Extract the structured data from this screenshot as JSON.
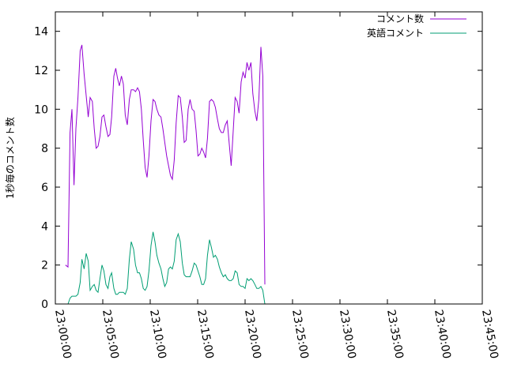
{
  "chart_data": {
    "type": "line",
    "xlabel": "",
    "ylabel": "1秒毎のコメント数",
    "ylim": [
      0,
      15
    ],
    "yticks": [
      0,
      2,
      4,
      6,
      8,
      10,
      12,
      14
    ],
    "xlim_seconds": [
      0,
      2700
    ],
    "xticks": [
      {
        "t": 0,
        "label": "23:00:00"
      },
      {
        "t": 300,
        "label": "23:05:00"
      },
      {
        "t": 600,
        "label": "23:10:00"
      },
      {
        "t": 900,
        "label": "23:15:00"
      },
      {
        "t": 1200,
        "label": "23:20:00"
      },
      {
        "t": 1500,
        "label": "23:25:00"
      },
      {
        "t": 1800,
        "label": "23:30:00"
      },
      {
        "t": 2100,
        "label": "23:35:00"
      },
      {
        "t": 2400,
        "label": "23:40:00"
      },
      {
        "t": 2700,
        "label": "23:45:00"
      }
    ],
    "legend_position": "top-right",
    "series": [
      {
        "name": "コメント数",
        "color": "#9400d3",
        "points": [
          [
            64,
            2.0
          ],
          [
            80,
            1.9
          ],
          [
            93,
            8.8
          ],
          [
            105,
            10.0
          ],
          [
            118,
            6.1
          ],
          [
            130,
            9.0
          ],
          [
            143,
            10.6
          ],
          [
            157,
            13.0
          ],
          [
            168,
            13.3
          ],
          [
            182,
            11.8
          ],
          [
            195,
            10.7
          ],
          [
            208,
            9.6
          ],
          [
            220,
            10.6
          ],
          [
            234,
            10.4
          ],
          [
            246,
            9.0
          ],
          [
            258,
            8.0
          ],
          [
            270,
            8.1
          ],
          [
            282,
            8.6
          ],
          [
            295,
            9.6
          ],
          [
            307,
            9.7
          ],
          [
            320,
            9.1
          ],
          [
            333,
            8.6
          ],
          [
            345,
            8.7
          ],
          [
            356,
            9.6
          ],
          [
            370,
            11.7
          ],
          [
            382,
            12.1
          ],
          [
            393,
            11.6
          ],
          [
            405,
            11.2
          ],
          [
            418,
            11.7
          ],
          [
            430,
            11.3
          ],
          [
            442,
            9.7
          ],
          [
            455,
            9.2
          ],
          [
            468,
            10.5
          ],
          [
            480,
            11.0
          ],
          [
            495,
            11.0
          ],
          [
            507,
            10.9
          ],
          [
            520,
            11.1
          ],
          [
            532,
            10.9
          ],
          [
            544,
            10.0
          ],
          [
            556,
            8.4
          ],
          [
            568,
            7.0
          ],
          [
            580,
            6.5
          ],
          [
            592,
            7.6
          ],
          [
            605,
            9.4
          ],
          [
            618,
            10.5
          ],
          [
            630,
            10.4
          ],
          [
            642,
            10.0
          ],
          [
            655,
            9.7
          ],
          [
            668,
            9.6
          ],
          [
            680,
            9.0
          ],
          [
            692,
            8.3
          ],
          [
            704,
            7.6
          ],
          [
            716,
            7.1
          ],
          [
            728,
            6.6
          ],
          [
            740,
            6.4
          ],
          [
            752,
            7.4
          ],
          [
            764,
            9.3
          ],
          [
            777,
            10.7
          ],
          [
            790,
            10.6
          ],
          [
            803,
            9.6
          ],
          [
            815,
            8.3
          ],
          [
            827,
            8.4
          ],
          [
            840,
            10.0
          ],
          [
            852,
            10.5
          ],
          [
            865,
            10.0
          ],
          [
            878,
            9.9
          ],
          [
            890,
            8.9
          ],
          [
            902,
            7.6
          ],
          [
            914,
            7.7
          ],
          [
            926,
            8.0
          ],
          [
            938,
            7.8
          ],
          [
            950,
            7.5
          ],
          [
            962,
            8.5
          ],
          [
            975,
            10.4
          ],
          [
            987,
            10.5
          ],
          [
            1000,
            10.4
          ],
          [
            1012,
            10.1
          ],
          [
            1025,
            9.5
          ],
          [
            1037,
            9.0
          ],
          [
            1050,
            8.8
          ],
          [
            1062,
            8.8
          ],
          [
            1075,
            9.2
          ],
          [
            1087,
            9.4
          ],
          [
            1100,
            8.2
          ],
          [
            1112,
            7.1
          ],
          [
            1125,
            8.9
          ],
          [
            1137,
            10.6
          ],
          [
            1150,
            10.4
          ],
          [
            1162,
            9.8
          ],
          [
            1175,
            11.4
          ],
          [
            1187,
            11.9
          ],
          [
            1200,
            11.6
          ],
          [
            1212,
            12.4
          ],
          [
            1224,
            12.0
          ],
          [
            1237,
            12.4
          ],
          [
            1249,
            10.8
          ],
          [
            1262,
            9.9
          ],
          [
            1274,
            9.4
          ],
          [
            1287,
            10.5
          ],
          [
            1300,
            13.2
          ],
          [
            1312,
            11.7
          ],
          [
            1325,
            1.0
          ]
        ]
      },
      {
        "name": "英語コメント",
        "color": "#009e73",
        "points": [
          [
            64,
            0.0
          ],
          [
            80,
            0.0
          ],
          [
            93,
            0.3
          ],
          [
            105,
            0.4
          ],
          [
            118,
            0.4
          ],
          [
            130,
            0.4
          ],
          [
            143,
            0.5
          ],
          [
            157,
            1.1
          ],
          [
            168,
            2.3
          ],
          [
            182,
            1.8
          ],
          [
            195,
            2.6
          ],
          [
            208,
            2.2
          ],
          [
            220,
            0.7
          ],
          [
            234,
            0.9
          ],
          [
            246,
            1.0
          ],
          [
            258,
            0.7
          ],
          [
            270,
            0.6
          ],
          [
            282,
            1.3
          ],
          [
            295,
            2.0
          ],
          [
            307,
            1.7
          ],
          [
            320,
            1.0
          ],
          [
            333,
            0.8
          ],
          [
            345,
            1.4
          ],
          [
            356,
            1.6
          ],
          [
            370,
            0.8
          ],
          [
            382,
            0.5
          ],
          [
            393,
            0.5
          ],
          [
            405,
            0.6
          ],
          [
            418,
            0.6
          ],
          [
            430,
            0.6
          ],
          [
            442,
            0.5
          ],
          [
            455,
            0.8
          ],
          [
            468,
            2.3
          ],
          [
            480,
            3.2
          ],
          [
            495,
            2.8
          ],
          [
            507,
            2.0
          ],
          [
            520,
            1.6
          ],
          [
            532,
            1.6
          ],
          [
            544,
            1.3
          ],
          [
            556,
            0.8
          ],
          [
            568,
            0.7
          ],
          [
            580,
            0.9
          ],
          [
            592,
            1.7
          ],
          [
            605,
            3.0
          ],
          [
            618,
            3.7
          ],
          [
            630,
            3.2
          ],
          [
            642,
            2.5
          ],
          [
            655,
            2.1
          ],
          [
            668,
            1.8
          ],
          [
            680,
            1.3
          ],
          [
            692,
            0.9
          ],
          [
            704,
            1.1
          ],
          [
            716,
            1.8
          ],
          [
            728,
            1.9
          ],
          [
            740,
            1.8
          ],
          [
            752,
            2.2
          ],
          [
            764,
            3.3
          ],
          [
            777,
            3.6
          ],
          [
            790,
            3.2
          ],
          [
            803,
            2.1
          ],
          [
            815,
            1.5
          ],
          [
            827,
            1.4
          ],
          [
            840,
            1.4
          ],
          [
            852,
            1.4
          ],
          [
            865,
            1.7
          ],
          [
            878,
            2.1
          ],
          [
            890,
            2.0
          ],
          [
            902,
            1.7
          ],
          [
            914,
            1.4
          ],
          [
            926,
            1.0
          ],
          [
            938,
            1.0
          ],
          [
            950,
            1.3
          ],
          [
            962,
            2.5
          ],
          [
            975,
            3.3
          ],
          [
            987,
            2.9
          ],
          [
            1000,
            2.4
          ],
          [
            1012,
            2.5
          ],
          [
            1025,
            2.3
          ],
          [
            1037,
            1.9
          ],
          [
            1050,
            1.6
          ],
          [
            1062,
            1.4
          ],
          [
            1075,
            1.5
          ],
          [
            1087,
            1.3
          ],
          [
            1100,
            1.2
          ],
          [
            1112,
            1.2
          ],
          [
            1125,
            1.3
          ],
          [
            1137,
            1.7
          ],
          [
            1150,
            1.6
          ],
          [
            1162,
            1.0
          ],
          [
            1175,
            0.9
          ],
          [
            1187,
            0.9
          ],
          [
            1200,
            0.8
          ],
          [
            1212,
            1.3
          ],
          [
            1224,
            1.2
          ],
          [
            1237,
            1.3
          ],
          [
            1249,
            1.2
          ],
          [
            1262,
            1.0
          ],
          [
            1274,
            0.8
          ],
          [
            1287,
            0.8
          ],
          [
            1300,
            0.9
          ],
          [
            1312,
            0.7
          ],
          [
            1325,
            0.0
          ]
        ]
      }
    ]
  }
}
